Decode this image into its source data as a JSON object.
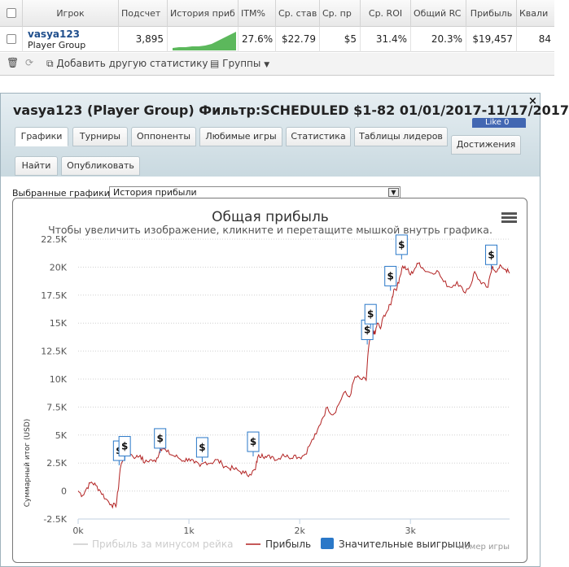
{
  "grid": {
    "headers": [
      "Игрок",
      "Подсчет",
      "История приб",
      "ITM%",
      "Ср. став",
      "Ср. пр",
      "Ср. ROI",
      "Общий RC",
      "Прибыль",
      "Квали"
    ],
    "row": {
      "player": "vasya123",
      "group": "Player Group",
      "count": "3,895",
      "itm": "27.6%",
      "avg_stake": "$22.79",
      "avg_prize": "$5",
      "avg_roi": "31.4%",
      "total_roi": "20.3%",
      "profit": "$19,457",
      "qual": "84"
    },
    "toolbar": {
      "add_stats": "Добавить другую статистику",
      "groups": "Группы"
    }
  },
  "dialog": {
    "title": "vasya123 (Player Group) Фильтр:SCHEDULED $1-82 01/01/2017-11/17/2017",
    "close": "×",
    "like": "Like 0",
    "tabs": [
      "Графики",
      "Турниры",
      "Оппоненты",
      "Любимые игры",
      "Статистика",
      "Таблицы лидеров",
      "Достижения",
      "Найти",
      "Опубликовать"
    ],
    "active_tab": "Графики",
    "selected_graphs_label": "Выбранные графики:",
    "selected_graph": "История прибыли"
  },
  "colors": {
    "accent": "#1f4e8c",
    "line": "#b22222",
    "line_rake": "#cccccc",
    "marker": "#2a78c8",
    "facebook": "#4267b2"
  },
  "chart_data": {
    "type": "line",
    "title": "Общая прибыль",
    "subtitle": "Чтобы увеличить изображение, кликните и перетащите мышкой внутрь графика.",
    "ylabel": "Суммарный итог (USD)",
    "xlabel": "Номер игры",
    "xlim": [
      0,
      3895
    ],
    "ylim": [
      -2500,
      22500
    ],
    "x_ticks": [
      "0k",
      "1k",
      "2k",
      "3k"
    ],
    "y_ticks": [
      "-2.5K",
      "0",
      "2.5K",
      "5K",
      "7.5K",
      "10K",
      "12.5K",
      "15K",
      "17.5K",
      "20K",
      "22.5K"
    ],
    "legend": [
      "Прибыль за минусом рейка",
      "Прибыль",
      "Значительные выигрыши"
    ],
    "series": [
      {
        "name": "Прибыль",
        "points": [
          [
            0,
            0
          ],
          [
            40,
            -400
          ],
          [
            80,
            300
          ],
          [
            120,
            800
          ],
          [
            160,
            500
          ],
          [
            200,
            0
          ],
          [
            250,
            -700
          ],
          [
            300,
            -1200
          ],
          [
            340,
            -1400
          ],
          [
            360,
            0
          ],
          [
            380,
            2000
          ],
          [
            420,
            3500
          ],
          [
            470,
            3300
          ],
          [
            520,
            3000
          ],
          [
            560,
            3200
          ],
          [
            600,
            2500
          ],
          [
            650,
            2800
          ],
          [
            700,
            2600
          ],
          [
            740,
            3700
          ],
          [
            760,
            3900
          ],
          [
            800,
            3500
          ],
          [
            850,
            3200
          ],
          [
            900,
            3000
          ],
          [
            950,
            2700
          ],
          [
            1000,
            2900
          ],
          [
            1050,
            2500
          ],
          [
            1100,
            2200
          ],
          [
            1150,
            2600
          ],
          [
            1200,
            2500
          ],
          [
            1250,
            2800
          ],
          [
            1300,
            2400
          ],
          [
            1350,
            2100
          ],
          [
            1400,
            2000
          ],
          [
            1450,
            1800
          ],
          [
            1500,
            1600
          ],
          [
            1550,
            1500
          ],
          [
            1600,
            1900
          ],
          [
            1620,
            3000
          ],
          [
            1660,
            3300
          ],
          [
            1700,
            3000
          ],
          [
            1750,
            3100
          ],
          [
            1800,
            2800
          ],
          [
            1850,
            3300
          ],
          [
            1900,
            3000
          ],
          [
            1950,
            3200
          ],
          [
            2000,
            3000
          ],
          [
            2050,
            3300
          ],
          [
            2100,
            4300
          ],
          [
            2150,
            5100
          ],
          [
            2200,
            6400
          ],
          [
            2250,
            7500
          ],
          [
            2300,
            6800
          ],
          [
            2350,
            7700
          ],
          [
            2400,
            8800
          ],
          [
            2450,
            8400
          ],
          [
            2500,
            10200
          ],
          [
            2550,
            10000
          ],
          [
            2600,
            9900
          ],
          [
            2620,
            12600
          ],
          [
            2640,
            13800
          ],
          [
            2660,
            14400
          ],
          [
            2680,
            14000
          ],
          [
            2700,
            15000
          ],
          [
            2730,
            14500
          ],
          [
            2760,
            15700
          ],
          [
            2800,
            16200
          ],
          [
            2830,
            17000
          ],
          [
            2850,
            18000
          ],
          [
            2880,
            18200
          ],
          [
            2900,
            19000
          ],
          [
            2930,
            20100
          ],
          [
            2970,
            19800
          ],
          [
            3000,
            19300
          ],
          [
            3040,
            19900
          ],
          [
            3080,
            20400
          ],
          [
            3120,
            19800
          ],
          [
            3180,
            19500
          ],
          [
            3240,
            19700
          ],
          [
            3300,
            18700
          ],
          [
            3360,
            18200
          ],
          [
            3420,
            18700
          ],
          [
            3480,
            17800
          ],
          [
            3540,
            18300
          ],
          [
            3580,
            19600
          ],
          [
            3640,
            18500
          ],
          [
            3700,
            18200
          ],
          [
            3740,
            20100
          ],
          [
            3780,
            19600
          ],
          [
            3820,
            20100
          ],
          [
            3860,
            19800
          ],
          [
            3895,
            19457
          ]
        ]
      },
      {
        "name": "Значительные выигрыши",
        "points": [
          [
            370,
            3600
          ],
          [
            420,
            4000
          ],
          [
            740,
            4700
          ],
          [
            1120,
            3900
          ],
          [
            1580,
            4400
          ],
          [
            2610,
            14400
          ],
          [
            2640,
            15800
          ],
          [
            2820,
            19200
          ],
          [
            2920,
            22000
          ],
          [
            3730,
            21100
          ]
        ]
      }
    ]
  }
}
